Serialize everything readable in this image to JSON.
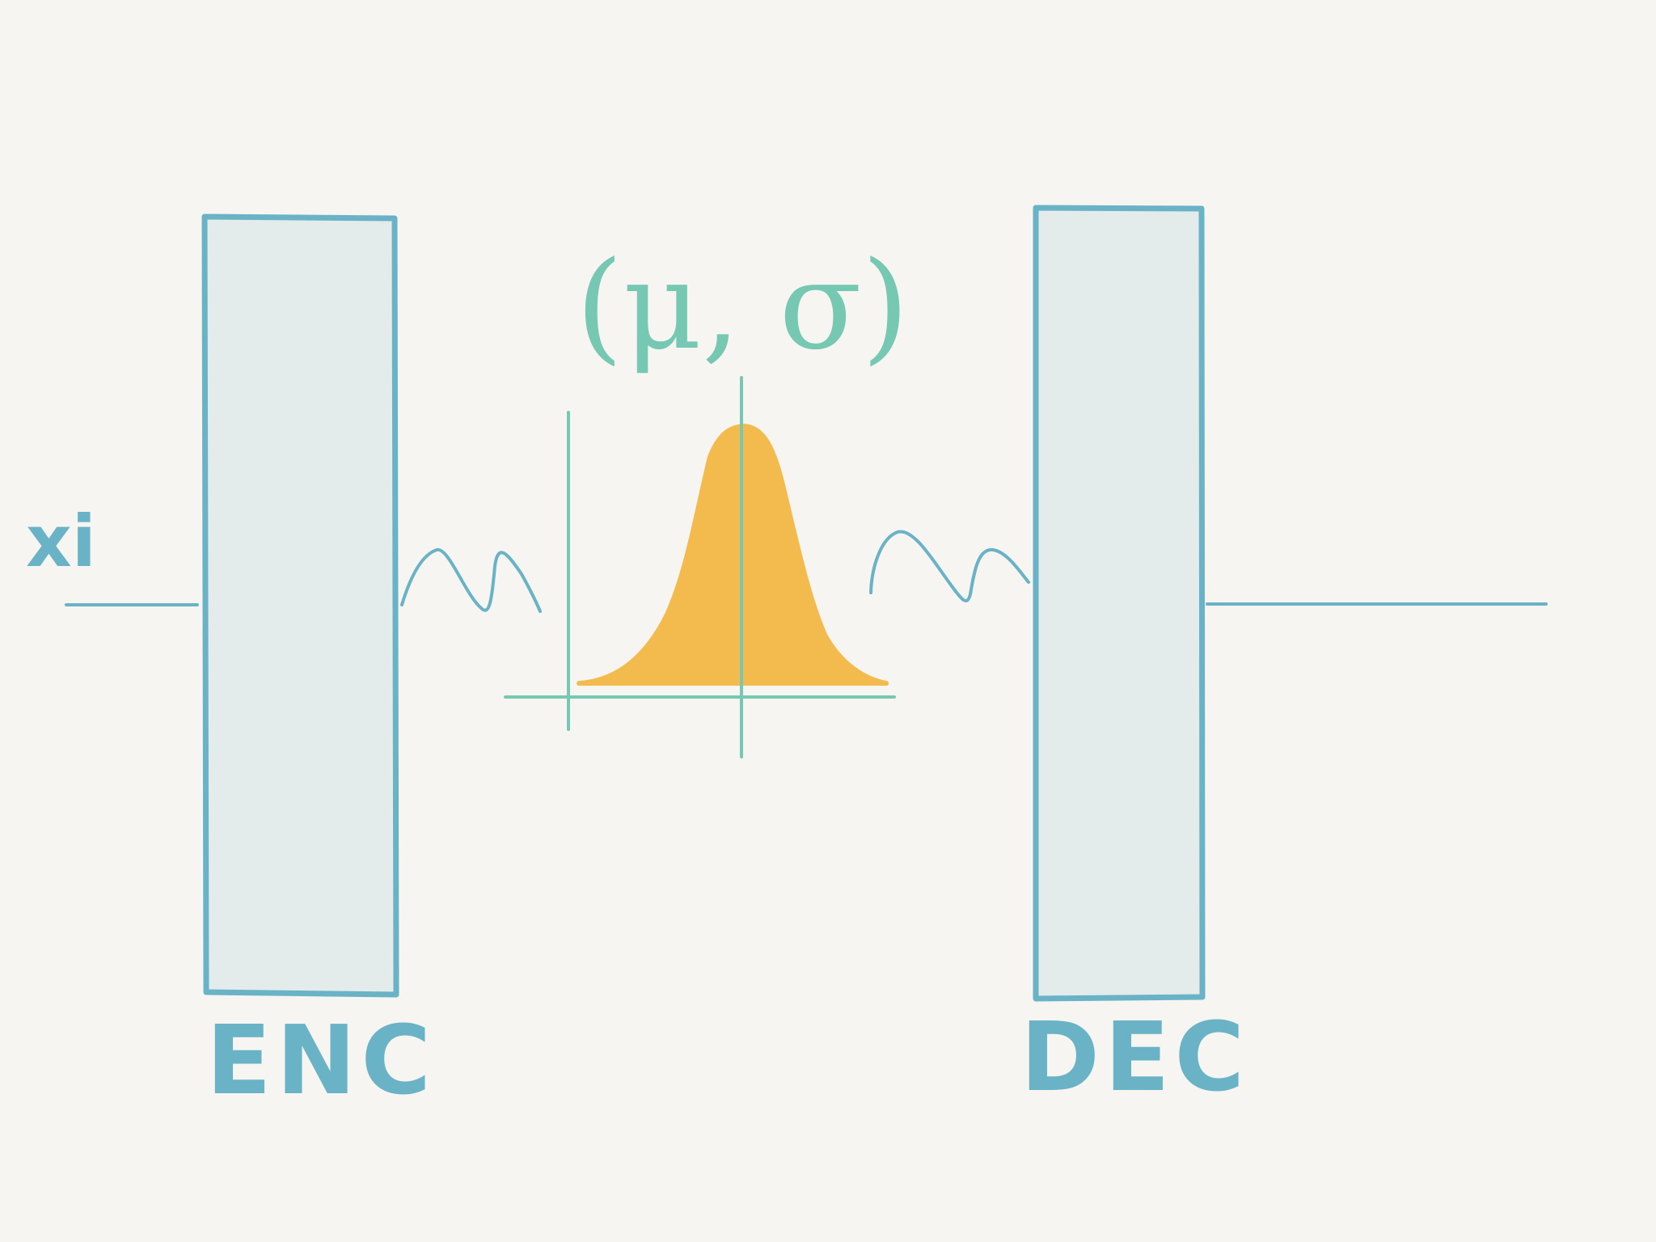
{
  "colors": {
    "background": "#f6f5f1",
    "box_fill": "#e3ecea",
    "box_stroke": "#6ab3c6",
    "teal_ink": "#76c8b2",
    "gaussian_fill": "#f3bb4d"
  },
  "input": {
    "label": "xi"
  },
  "encoder": {
    "label": "ENC"
  },
  "latent": {
    "params": "(μ, σ)"
  },
  "decoder": {
    "label": "DEC"
  },
  "icons": {
    "left_wave": "squiggle-arrow",
    "right_wave": "squiggle-arrow",
    "distribution": "gaussian-bell-curve"
  }
}
